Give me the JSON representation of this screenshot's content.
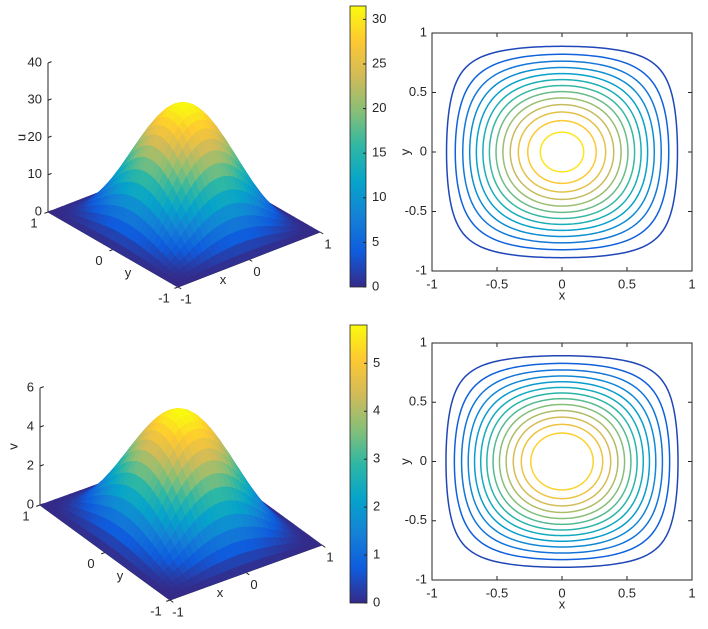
{
  "chart_data": [
    {
      "type": "surface",
      "zlabel": "u",
      "xlabel": "x",
      "ylabel": "y",
      "xlim": [
        -1,
        1
      ],
      "ylim": [
        -1,
        1
      ],
      "zlim": [
        0,
        40
      ],
      "xticks": [
        -1,
        0,
        1
      ],
      "yticks": [
        -1,
        0,
        1
      ],
      "zticks": [
        0,
        10,
        20,
        30,
        40
      ],
      "peak": 31.5,
      "clim": [
        0,
        31.5
      ],
      "cticks": [
        0,
        5,
        10,
        15,
        20,
        25,
        30
      ],
      "colormap": [
        "#352a87",
        "#0f5cdd",
        "#1481d6",
        "#06a4ca",
        "#2eb7a4",
        "#87bf77",
        "#d1bb59",
        "#fec832",
        "#f9fb0e"
      ]
    },
    {
      "type": "contour",
      "xlabel": "x",
      "ylabel": "y",
      "xlim": [
        -1,
        1
      ],
      "ylim": [
        -1,
        1
      ],
      "xticks": [
        -1,
        -0.5,
        0,
        0.5,
        1
      ],
      "yticks": [
        -1,
        -0.5,
        0,
        0.5,
        1
      ],
      "peak": 31.5,
      "clim": [
        0,
        31.5
      ],
      "levels": [
        2.3,
        4.6,
        6.9,
        9.2,
        11.5,
        13.8,
        16.1,
        18.4,
        20.7,
        23,
        25.3,
        27.6,
        29.9
      ],
      "colormap": [
        "#352a87",
        "#0f5cdd",
        "#1481d6",
        "#06a4ca",
        "#2eb7a4",
        "#87bf77",
        "#d1bb59",
        "#fec832",
        "#f9fb0e"
      ]
    },
    {
      "type": "surface",
      "zlabel": "v",
      "xlabel": "x",
      "ylabel": "y",
      "xlim": [
        -1,
        1
      ],
      "ylim": [
        -1,
        1
      ],
      "zlim": [
        0,
        6
      ],
      "xticks": [
        -1,
        0,
        1
      ],
      "yticks": [
        -1,
        0,
        1
      ],
      "zticks": [
        0,
        2,
        4,
        6
      ],
      "peak": 5.8,
      "clim": [
        0,
        5.8
      ],
      "cticks": [
        0,
        1,
        2,
        3,
        4,
        5
      ],
      "colormap": [
        "#352a87",
        "#0f5cdd",
        "#1481d6",
        "#06a4ca",
        "#2eb7a4",
        "#87bf77",
        "#d1bb59",
        "#fec832",
        "#f9fb0e"
      ]
    },
    {
      "type": "contour",
      "xlabel": "x",
      "ylabel": "y",
      "xlim": [
        -1,
        1
      ],
      "ylim": [
        -1,
        1
      ],
      "xticks": [
        -1,
        -0.5,
        0,
        0.5,
        1
      ],
      "yticks": [
        -1,
        -0.5,
        0,
        0.5,
        1
      ],
      "peak": 5.8,
      "clim": [
        0,
        5.8
      ],
      "levels": [
        0.4,
        0.8,
        1.2,
        1.6,
        2,
        2.4,
        2.8,
        3.2,
        3.6,
        4,
        4.4,
        4.8,
        5.2
      ],
      "colormap": [
        "#352a87",
        "#0f5cdd",
        "#1481d6",
        "#06a4ca",
        "#2eb7a4",
        "#87bf77",
        "#d1bb59",
        "#fec832",
        "#f9fb0e"
      ]
    }
  ]
}
